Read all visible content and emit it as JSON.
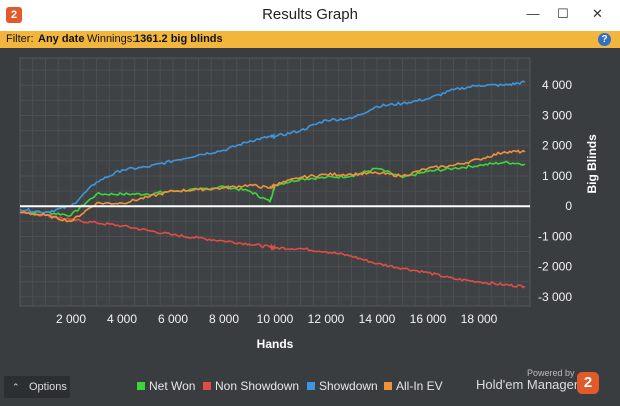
{
  "window": {
    "title": "Results Graph",
    "app_icon_text": "2",
    "min_glyph": "—",
    "max_glyph": "☐",
    "close_glyph": "✕"
  },
  "filter_bar": {
    "filter_label": "Filter:",
    "filter_value": "Any date",
    "winnings_label": "Winnings:",
    "winnings_value": "1361.2 big blinds",
    "help_icon": "?"
  },
  "footer": {
    "options_label": "Options",
    "options_caret": "⌃",
    "powered_by": "Powered by",
    "brand": "Hold'em Manager",
    "brand_logo": "2"
  },
  "colors": {
    "net_won": "#3fd43a",
    "non_showdown": "#e24b46",
    "showdown": "#3d96dd",
    "all_in_ev": "#f0923a",
    "zero_line": "#ffffff",
    "background": "#3a3d40",
    "grid": "#4c5053",
    "accent_bar": "#f2b63c"
  },
  "chart_data": {
    "type": "line",
    "xlabel": "Hands",
    "ylabel": "Big Blinds",
    "xlim": [
      0,
      20000
    ],
    "ylim": [
      -3300,
      4900
    ],
    "x_ticks": [
      2000,
      4000,
      6000,
      8000,
      10000,
      12000,
      14000,
      16000,
      18000
    ],
    "x_tick_labels": [
      "2 000",
      "4 000",
      "6 000",
      "8 000",
      "10 000",
      "12 000",
      "14 000",
      "16 000",
      "18 000"
    ],
    "y_ticks": [
      -3000,
      -2000,
      -1000,
      0,
      1000,
      2000,
      3000,
      4000
    ],
    "y_tick_labels": [
      "-3 000",
      "-2 000",
      "-1 000",
      "0",
      "1 000",
      "2 000",
      "3 000",
      "4 000"
    ],
    "grid": true,
    "legend_position": "bottom",
    "x": [
      0,
      1000,
      2000,
      3000,
      4000,
      5000,
      6000,
      7000,
      8000,
      9000,
      9800,
      10000,
      11000,
      12000,
      13000,
      14000,
      15000,
      16000,
      17000,
      18000,
      19000,
      19800
    ],
    "series": [
      {
        "name": "Net Won",
        "key": "net_won",
        "values": [
          -200,
          -200,
          -300,
          400,
          400,
          400,
          500,
          550,
          650,
          500,
          150,
          700,
          900,
          950,
          1000,
          1250,
          950,
          1150,
          1250,
          1350,
          1450,
          1400
        ]
      },
      {
        "name": "Non Showdown",
        "key": "non_showdown",
        "values": [
          -200,
          -300,
          -450,
          -550,
          -650,
          -800,
          -950,
          -1050,
          -1150,
          -1250,
          -1350,
          -1380,
          -1400,
          -1500,
          -1650,
          -1900,
          -2050,
          -2200,
          -2400,
          -2500,
          -2600,
          -2650
        ]
      },
      {
        "name": "Showdown",
        "key": "showdown",
        "values": [
          -100,
          -200,
          0,
          800,
          1200,
          1300,
          1500,
          1700,
          1850,
          2150,
          2300,
          2300,
          2500,
          2850,
          2900,
          3300,
          3400,
          3550,
          3850,
          4000,
          4000,
          4100
        ]
      },
      {
        "name": "All-In EV",
        "key": "all_in_ev",
        "values": [
          -200,
          -300,
          -500,
          100,
          100,
          300,
          500,
          550,
          600,
          700,
          600,
          700,
          950,
          1050,
          1050,
          1100,
          1000,
          1250,
          1350,
          1550,
          1800,
          1800
        ]
      }
    ]
  }
}
